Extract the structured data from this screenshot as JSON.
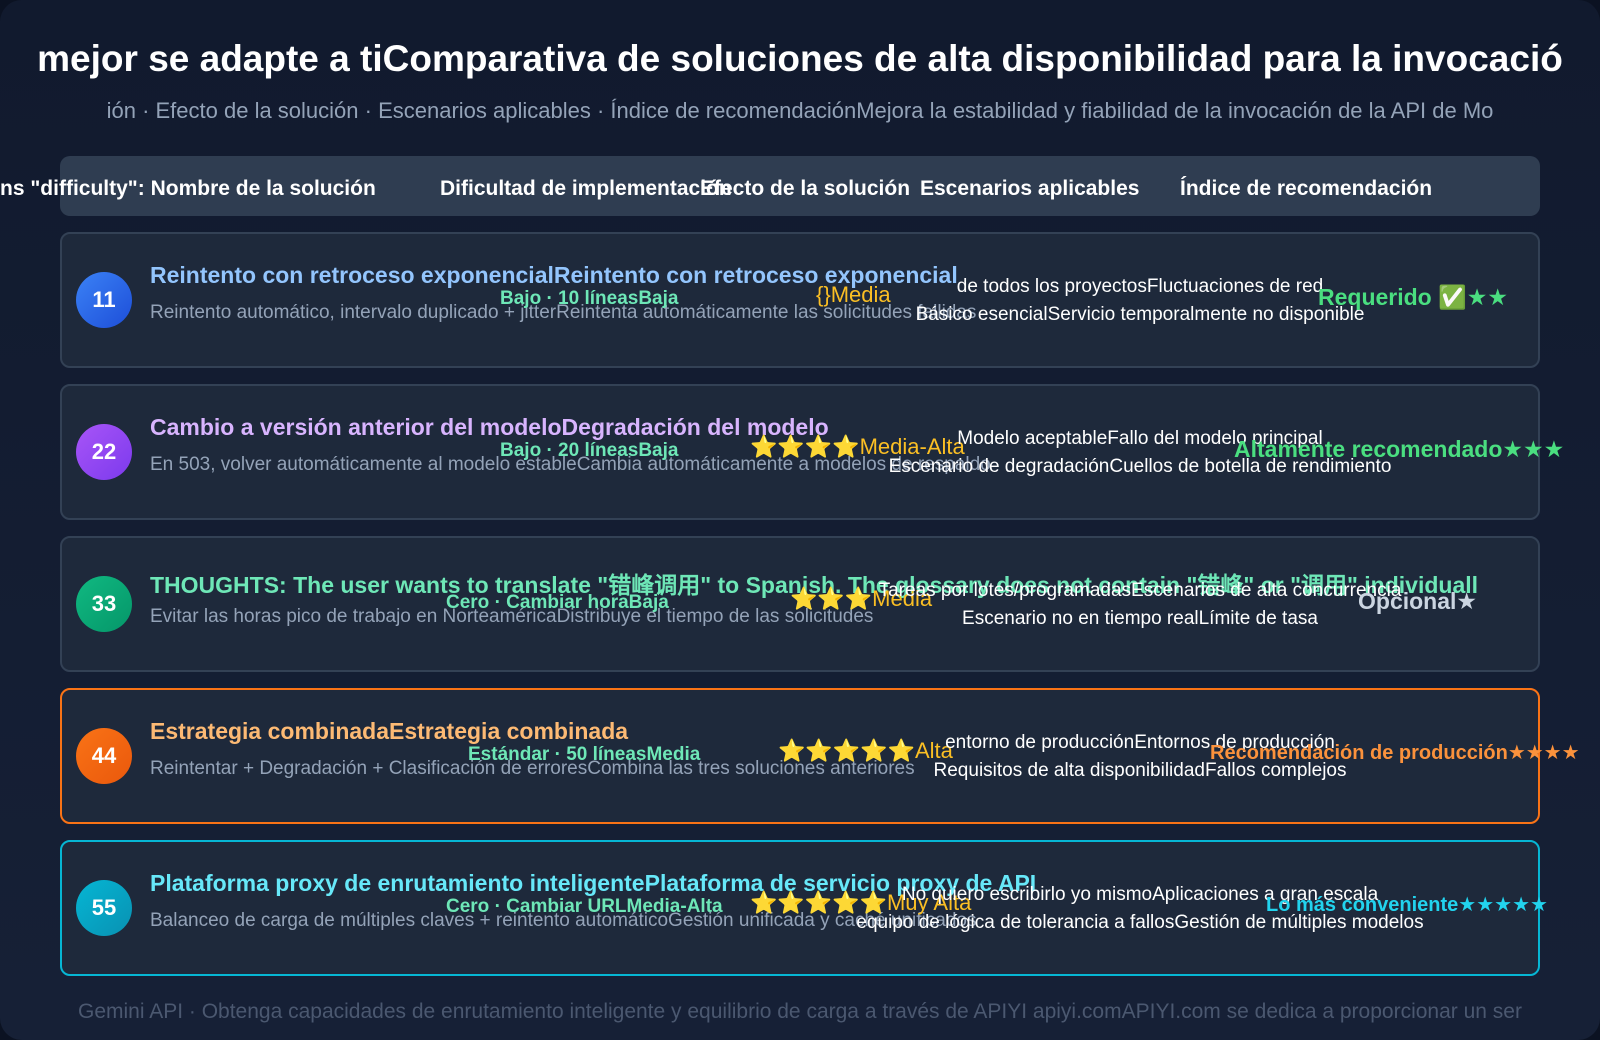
{
  "header": {
    "title": "mejor se adapte a tiComparativa de soluciones de alta disponibilidad para la invocació",
    "subtitle": "ión · Efecto de la solución · Escenarios aplicables · Índice de recomendaciónMejora la estabilidad y fiabilidad de la invocación de la API de Mo"
  },
  "table": {
    "columns": [
      "ns \"difficulty\": Nombre de la solución",
      "Dificultad de implementación",
      "Efecto de la solución",
      "Escenarios aplicables",
      "Índice de recomendación"
    ],
    "rows": [
      {
        "number": "11",
        "title": "Reintento con retroceso exponencialReintento con retroceso exponencial",
        "description": "Reintento automático, intervalo duplicado + jitterReintenta automáticamente las solicitudes fallidas",
        "difficulty": "Bajo · 10 líneasBaja",
        "effect": "{}Media",
        "scenario": [
          "de todos los proyectosFluctuaciones de red",
          "Básico esencialServicio temporalmente no disponible"
        ],
        "recommendation": "Requerido ✅★★"
      },
      {
        "number": "22",
        "title": "Cambio a versión anterior del modeloDegradación del modelo",
        "description": "En 503, volver automáticamente al modelo estableCambia automáticamente a modelos de respaldo",
        "difficulty": "Bajo · 20 líneasBaja",
        "effect": "⭐⭐⭐⭐Media-Alta",
        "scenario": [
          "Modelo aceptableFallo del modelo principal",
          "Escenario de degradaciónCuellos de botella de rendimiento"
        ],
        "recommendation": "Altamente recomendado★★★"
      },
      {
        "number": "33",
        "title": "THOUGHTS: The user wants to translate \"错峰调用\" to Spanish. The glossary does not contain \"错峰\" or \"调用\" individuall",
        "description": "Evitar las horas pico de trabajo en NorteaméricaDistribuye el tiempo de las solicitudes",
        "difficulty": "Cero · Cambiar horaBaja",
        "effect": "⭐⭐⭐Media",
        "scenario": [
          "Tareas por lotes/programadasEscenarios de alta concurrencia",
          "Escenario no en tiempo realLímite de tasa"
        ],
        "recommendation": "Opcional★"
      },
      {
        "number": "44",
        "title": "Estrategia combinadaEstrategia combinada",
        "description": "Reintentar + Degradación + Clasificación de erroresCombina las tres soluciones anteriores",
        "difficulty": "Estándar · 50 líneasMedia",
        "effect": "⭐⭐⭐⭐⭐Alta",
        "scenario": [
          "entorno de producciónEntornos de producción",
          "Requisitos de alta disponibilidadFallos complejos"
        ],
        "recommendation": "Recomendación de producción★★★★"
      },
      {
        "number": "55",
        "title": "Plataforma proxy de enrutamiento inteligentePlataforma de servicio proxy de API",
        "description": "Balanceo de carga de múltiples claves + reintento automáticoGestión unificada y caché unificados",
        "difficulty": "Cero · Cambiar URLMedia-Alta",
        "effect": "⭐⭐⭐⭐⭐Muy Alta",
        "scenario": [
          "No quiero escribirlo yo mismoAplicaciones a gran escala",
          "equipo de lógica de tolerancia a fallosGestión de múltiples modelos"
        ],
        "recommendation": "Lo más conveniente★★★★★"
      }
    ]
  },
  "footer": {
    "text": "Gemini API · Obtenga capacidades de enrutamiento inteligente y equilibrio de carga a través de APIYI apiyi.comAPIYI.com se dedica a proporcionar un ser"
  }
}
